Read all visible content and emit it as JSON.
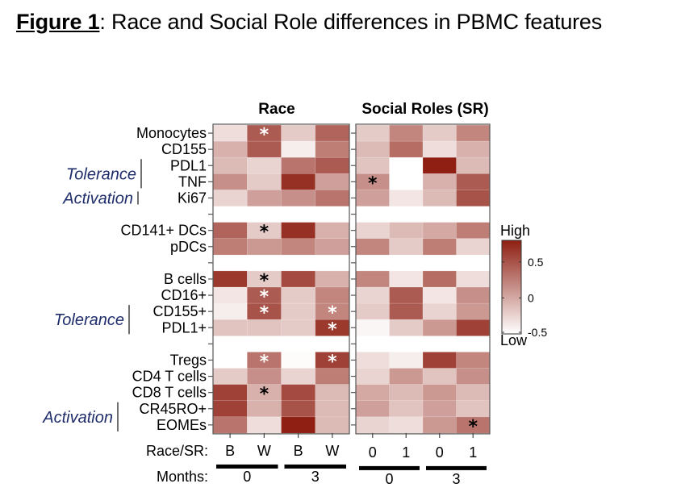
{
  "figure": {
    "label": "Figure 1",
    "caption": ": Race and Social Role differences in PBMC features"
  },
  "chart_data": {
    "type": "heatmap",
    "title": "Race and Social Role differences in PBMC features",
    "panels": [
      {
        "title": "Race",
        "columns": [
          "B",
          "W",
          "B",
          "W"
        ],
        "months": [
          "0",
          "3"
        ]
      },
      {
        "title": "Social Roles (SR)",
        "columns": [
          "0",
          "1",
          "0",
          "1"
        ],
        "months": [
          "0",
          "3"
        ]
      }
    ],
    "xaxis_labels": {
      "row1": "Race/SR:",
      "row2": "Months:"
    },
    "rows": [
      "Monocytes",
      "CD155",
      "PDL1",
      "TNF",
      "Ki67",
      "",
      "CD141+ DCs",
      "pDCs",
      "",
      "B cells",
      "CD16+",
      "CD155+",
      "PDL1+",
      "",
      "Tregs",
      "CD4 T cells",
      "CD8 T cells",
      "CR45RO+",
      "EOMEs"
    ],
    "row_groups": [
      {
        "label": "Tolerance",
        "rows": [
          "PDL1",
          "TNF"
        ]
      },
      {
        "label": "Activation",
        "rows": [
          "Ki67"
        ]
      },
      {
        "label": "Tolerance",
        "rows": [
          "CD155+",
          "PDL1+"
        ]
      },
      {
        "label": "Activation",
        "rows": [
          "CR45RO+",
          "EOMEs"
        ]
      }
    ],
    "values": {
      "Race": [
        [
          -0.3,
          0.45,
          -0.2,
          0.4
        ],
        [
          -0.05,
          0.45,
          -0.4,
          0.25
        ],
        [
          -0.1,
          -0.25,
          0.3,
          0.45
        ],
        [
          0.15,
          -0.2,
          0.7,
          0.05
        ],
        [
          -0.25,
          0.05,
          0.15,
          0.3
        ],
        null,
        [
          0.4,
          -0.2,
          0.7,
          -0.05
        ],
        [
          0.25,
          0.1,
          0.2,
          0.05
        ],
        null,
        [
          0.65,
          -0.2,
          0.55,
          -0.05
        ],
        [
          -0.35,
          0.45,
          -0.2,
          0.2
        ],
        [
          -0.4,
          0.5,
          -0.2,
          0.2
        ],
        [
          -0.15,
          -0.15,
          -0.2,
          0.65
        ],
        null,
        [
          -0.5,
          0.3,
          -0.48,
          0.6
        ],
        [
          -0.2,
          0.15,
          -0.25,
          0.25
        ],
        [
          0.6,
          -0.05,
          0.55,
          -0.1
        ],
        [
          0.6,
          -0.05,
          0.5,
          -0.1
        ],
        [
          0.3,
          -0.3,
          0.8,
          -0.1
        ]
      ],
      "Social Roles (SR)": [
        [
          -0.2,
          0.2,
          -0.2,
          0.2
        ],
        [
          -0.1,
          0.35,
          -0.3,
          -0.05
        ],
        [
          -0.15,
          -0.5,
          0.8,
          -0.1
        ],
        [
          0.15,
          -0.5,
          -0.05,
          0.45
        ],
        [
          0.05,
          -0.35,
          -0.1,
          0.5
        ],
        null,
        [
          -0.25,
          -0.1,
          0.0,
          0.25
        ],
        [
          0.2,
          -0.2,
          0.25,
          -0.25
        ],
        null,
        [
          0.2,
          -0.35,
          0.35,
          -0.3
        ],
        [
          -0.25,
          0.45,
          -0.35,
          0.15
        ],
        [
          -0.2,
          0.45,
          -0.25,
          0.1
        ],
        [
          -0.45,
          -0.2,
          0.1,
          0.6
        ],
        null,
        [
          -0.3,
          -0.4,
          0.6,
          0.2
        ],
        [
          -0.25,
          0.1,
          -0.15,
          0.15
        ],
        [
          0.0,
          -0.1,
          0.1,
          -0.1
        ],
        [
          0.05,
          -0.15,
          0.05,
          -0.15
        ],
        [
          -0.25,
          -0.3,
          0.1,
          0.3
        ]
      ]
    },
    "significance": [
      {
        "panel": "Race",
        "row": "Monocytes",
        "col": 1,
        "color": "white"
      },
      {
        "panel": "Race",
        "row": "CD141+ DCs",
        "col": 1,
        "color": "black"
      },
      {
        "panel": "Race",
        "row": "B cells",
        "col": 1,
        "color": "black"
      },
      {
        "panel": "Race",
        "row": "CD16+",
        "col": 1,
        "color": "white"
      },
      {
        "panel": "Race",
        "row": "CD155+",
        "col": 1,
        "color": "white"
      },
      {
        "panel": "Race",
        "row": "CD155+",
        "col": 3,
        "color": "white"
      },
      {
        "panel": "Race",
        "row": "PDL1+",
        "col": 3,
        "color": "white"
      },
      {
        "panel": "Race",
        "row": "Tregs",
        "col": 1,
        "color": "white"
      },
      {
        "panel": "Race",
        "row": "Tregs",
        "col": 3,
        "color": "white"
      },
      {
        "panel": "Race",
        "row": "CD8 T cells",
        "col": 1,
        "color": "black"
      },
      {
        "panel": "Social Roles (SR)",
        "row": "TNF",
        "col": 0,
        "color": "black"
      },
      {
        "panel": "Social Roles (SR)",
        "row": "EOMEs",
        "col": 3,
        "color": "black"
      }
    ],
    "significance_marker": "*",
    "colorbar": {
      "high_label": "High",
      "low_label": "Low",
      "ticks": [
        "0.5",
        "0",
        "-0.5"
      ],
      "tick_values": [
        0.5,
        0,
        -0.5
      ],
      "range": [
        -0.5,
        0.8
      ],
      "color_low": "#ffffff",
      "color_high": "#8e1f12"
    }
  }
}
